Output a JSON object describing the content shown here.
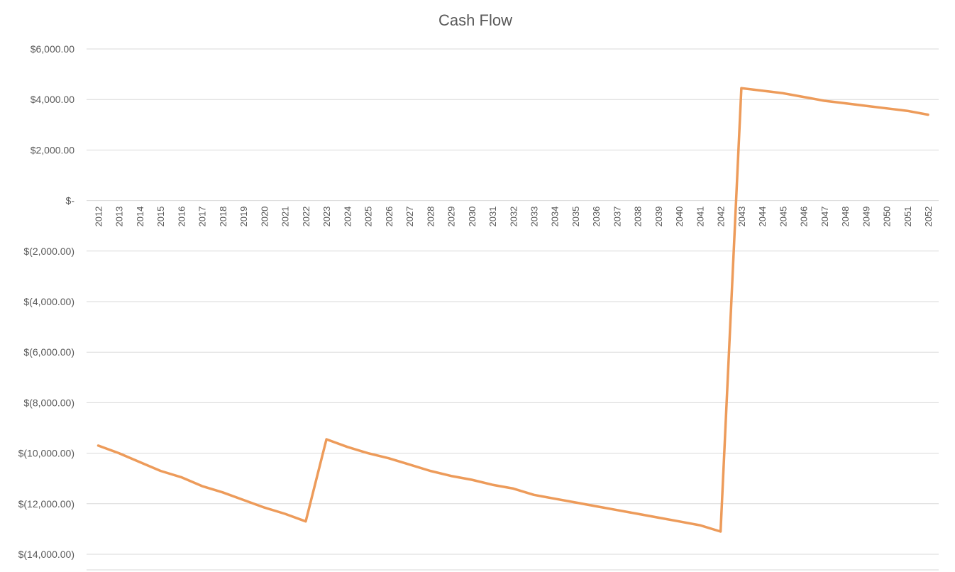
{
  "chart_data": {
    "type": "line",
    "title": "Cash Flow",
    "xlabel": "",
    "ylabel": "",
    "ylim": [
      -14000,
      6000
    ],
    "yticks": [
      6000,
      4000,
      2000,
      0,
      -2000,
      -4000,
      -6000,
      -8000,
      -10000,
      -12000,
      -14000
    ],
    "ytick_labels": [
      "$6,000.00",
      "$4,000.00",
      "$2,000.00",
      "$-",
      "$(2,000.00)",
      "$(4,000.00)",
      "$(6,000.00)",
      "$(8,000.00)",
      "$(10,000.00)",
      "$(12,000.00)",
      "$(14,000.00)"
    ],
    "grid": true,
    "legend": "none",
    "color": "#ED9B5A",
    "categories": [
      "2012",
      "2013",
      "2014",
      "2015",
      "2016",
      "2017",
      "2018",
      "2019",
      "2020",
      "2021",
      "2022",
      "2023",
      "2024",
      "2025",
      "2026",
      "2027",
      "2028",
      "2029",
      "2030",
      "2031",
      "2032",
      "2033",
      "2034",
      "2035",
      "2036",
      "2037",
      "2038",
      "2039",
      "2040",
      "2041",
      "2042",
      "2043",
      "2044",
      "2045",
      "2046",
      "2047",
      "2048",
      "2049",
      "2050",
      "2051",
      "2052"
    ],
    "series": [
      {
        "values": [
          -9700,
          -10000,
          -10350,
          -10700,
          -10950,
          -11300,
          -11550,
          -11850,
          -12150,
          -12400,
          -12700,
          -9450,
          -9750,
          -10000,
          -10200,
          -10450,
          -10700,
          -10900,
          -11050,
          -11250,
          -11400,
          -11650,
          -11800,
          -11950,
          -12100,
          -12250,
          -12400,
          -12550,
          -12700,
          -12850,
          -13100,
          4450,
          4350,
          4250,
          4100,
          3950,
          3850,
          3750,
          3650,
          3550,
          3400
        ]
      }
    ]
  }
}
